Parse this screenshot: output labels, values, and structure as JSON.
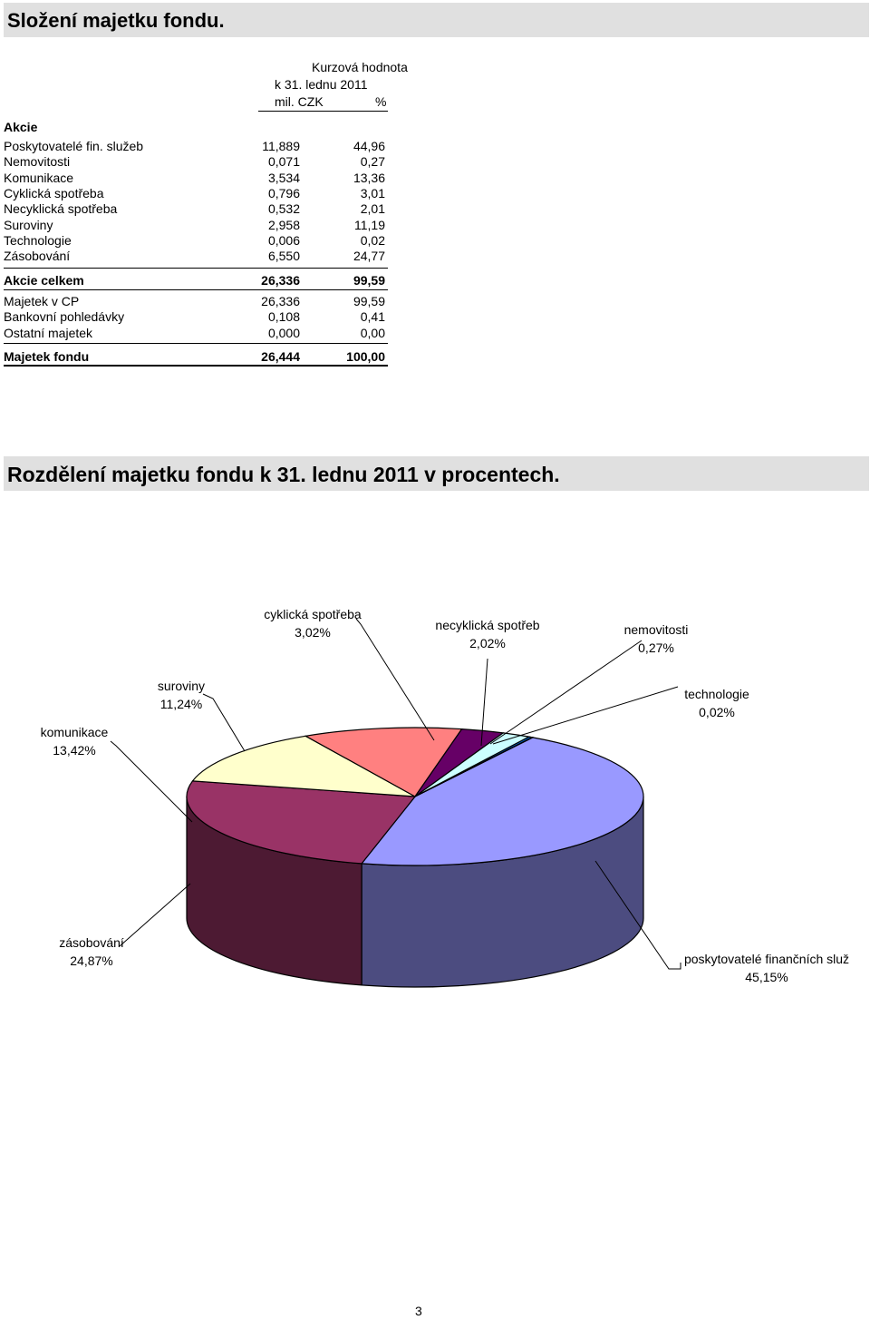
{
  "title": "Složení majetku fondu.",
  "table": {
    "header": {
      "col1_line1": "Kurzová hodnota",
      "col1_line2": "k 31. lednu 2011",
      "col1_line3": "mil. CZK",
      "col2": "%"
    },
    "category": "Akcie",
    "rows": [
      {
        "label": "Poskytovatelé fin. služeb",
        "value": "11,889",
        "pct": "44,96"
      },
      {
        "label": "Nemovitosti",
        "value": "0,071",
        "pct": "0,27"
      },
      {
        "label": "Komunikace",
        "value": "3,534",
        "pct": "13,36"
      },
      {
        "label": "Cyklická spotřeba",
        "value": "0,796",
        "pct": "3,01"
      },
      {
        "label": "Necyklická spotřeba",
        "value": "0,532",
        "pct": "2,01"
      },
      {
        "label": "Suroviny",
        "value": "2,958",
        "pct": "11,19"
      },
      {
        "label": "Technologie",
        "value": "0,006",
        "pct": "0,02"
      },
      {
        "label": "Zásobování",
        "value": "6,550",
        "pct": "24,77"
      }
    ],
    "subtotal": {
      "label": "Akcie celkem",
      "value": "26,336",
      "pct": "99,59"
    },
    "rows2": [
      {
        "label": "Majetek v CP",
        "value": "26,336",
        "pct": "99,59"
      },
      {
        "label": "Bankovní pohledávky",
        "value": "0,108",
        "pct": "0,41"
      },
      {
        "label": "Ostatní majetek",
        "value": "0,000",
        "pct": "0,00"
      }
    ],
    "total": {
      "label": "Majetek fondu",
      "value": "26,444",
      "pct": "100,00"
    }
  },
  "chart_title": "Rozdělení majetku fondu k 31. lednu 2011 v procentech.",
  "chart_data": {
    "type": "pie",
    "title": "",
    "slices": [
      {
        "label": "poskytovatelé finančních služeb",
        "label_shown": "poskytovatelé finančních služ",
        "pct_text": "45,15%",
        "value": 45.15,
        "color": "#9999ff",
        "side_color": "#4c4c80"
      },
      {
        "label": "zásobování",
        "label_shown": "zásobování",
        "pct_text": "24,87%",
        "value": 24.87,
        "color": "#993366",
        "side_color": "#4d1a33"
      },
      {
        "label": "komunikace",
        "label_shown": "komunikace",
        "pct_text": "13,42%",
        "value": 13.42,
        "color": "#ffffcc",
        "side_color": "#808066"
      },
      {
        "label": "suroviny",
        "label_shown": "suroviny",
        "pct_text": "11,24%",
        "value": 11.24,
        "color": "#ff8080",
        "side_color": "#804040"
      },
      {
        "label": "cyklická spotřeba",
        "label_shown": "cyklická spotřeba",
        "pct_text": "3,02%",
        "value": 3.02,
        "color": "#660066",
        "side_color": "#330033"
      },
      {
        "label": "necyklická spotřeba",
        "label_shown": "necyklická spotřeb",
        "pct_text": "2,02%",
        "value": 2.02,
        "color": "#ccffff",
        "side_color": "#668080"
      },
      {
        "label": "nemovitosti",
        "label_shown": "nemovitosti",
        "pct_text": "0,27%",
        "value": 0.27,
        "color": "#0066cc",
        "side_color": "#003366"
      },
      {
        "label": "technologie",
        "label_shown": "technologie",
        "pct_text": "0,02%",
        "value": 0.02,
        "color": "#000080",
        "side_color": "#000040"
      }
    ]
  },
  "page_number": "3"
}
